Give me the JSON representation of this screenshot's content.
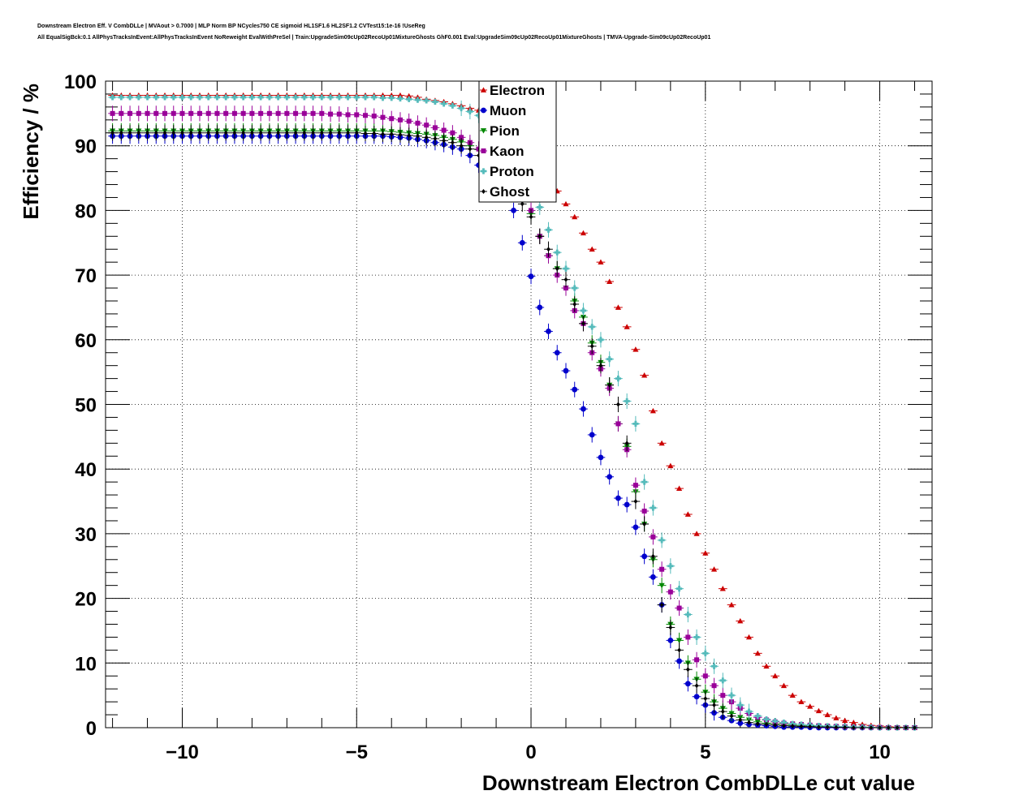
{
  "header": {
    "line1": "Downstream Electron Eff. V CombDLLe | MVAout > 0.7000 | MLP Norm BP NCycles750 CE sigmoid HL1SF1.6 HL2SF1.2 CVTest15:1e-16 !UseReg",
    "line2": "All EqualSigBck:0.1 AllPhysTracksInEvent:AllPhysTracksInEvent NoReweight EvalWithPreSel | Train:UpgradeSim09cUp02RecoUp01MixtureGhosts GhF0.001 Eval:UpgradeSim09cUp02RecoUp01MixtureGhosts | TMVA-Upgrade-Sim09cUp02RecoUp01"
  },
  "chart_data": {
    "type": "scatter",
    "xlabel": "Downstream Electron CombDLLe cut value",
    "ylabel": "Efficiency / %",
    "xlim": [
      -12.2,
      11.5
    ],
    "ylim": [
      0,
      100
    ],
    "xticks": [
      -10,
      -5,
      0,
      5,
      10
    ],
    "xtick_labels": [
      "−10",
      "−5",
      "0",
      "5",
      "10"
    ],
    "yticks": [
      0,
      10,
      20,
      30,
      40,
      50,
      60,
      70,
      80,
      90,
      100
    ],
    "ytick_labels": [
      "0",
      "10",
      "20",
      "30",
      "40",
      "50",
      "60",
      "70",
      "80",
      "90",
      "100"
    ],
    "grid": true,
    "legend_position": "top-center",
    "x": [
      -12,
      -11.75,
      -11.5,
      -11.25,
      -11,
      -10.75,
      -10.5,
      -10.25,
      -10,
      -9.75,
      -9.5,
      -9.25,
      -9,
      -8.75,
      -8.5,
      -8.25,
      -8,
      -7.75,
      -7.5,
      -7.25,
      -7,
      -6.75,
      -6.5,
      -6.25,
      -6,
      -5.75,
      -5.5,
      -5.25,
      -5,
      -4.75,
      -4.5,
      -4.25,
      -4,
      -3.75,
      -3.5,
      -3.25,
      -3,
      -2.75,
      -2.5,
      -2.25,
      -2,
      -1.75,
      -1.5,
      -1.25,
      -1,
      -0.75,
      -0.5,
      -0.25,
      0,
      0.25,
      0.5,
      0.75,
      1,
      1.25,
      1.5,
      1.75,
      2,
      2.25,
      2.5,
      2.75,
      3,
      3.25,
      3.5,
      3.75,
      4,
      4.25,
      4.5,
      4.75,
      5,
      5.25,
      5.5,
      5.75,
      6,
      6.25,
      6.5,
      6.75,
      7,
      7.25,
      7.5,
      7.75,
      8,
      8.25,
      8.5,
      8.75,
      9,
      9.25,
      9.5,
      9.75,
      10,
      10.25,
      10.5,
      10.75,
      11
    ],
    "series": [
      {
        "name": "Electron",
        "color": "#cc0000",
        "marker": "triangle-up",
        "values": [
          97.8,
          97.8,
          97.8,
          97.8,
          97.8,
          97.8,
          97.8,
          97.8,
          97.8,
          97.8,
          97.8,
          97.8,
          97.8,
          97.8,
          97.8,
          97.8,
          97.8,
          97.8,
          97.8,
          97.8,
          97.8,
          97.8,
          97.8,
          97.8,
          97.8,
          97.8,
          97.8,
          97.8,
          97.8,
          97.8,
          97.8,
          97.8,
          97.8,
          97.8,
          97.7,
          97.5,
          97.2,
          97.0,
          96.8,
          96.5,
          96.2,
          95.8,
          95.5,
          95.0,
          94.2,
          93.0,
          92.0,
          90.5,
          88.5,
          87.0,
          85.0,
          83.0,
          81.0,
          79.0,
          76.5,
          74.0,
          72.0,
          69.0,
          65.0,
          62.0,
          58.5,
          54.5,
          49.0,
          44.0,
          40.5,
          37.0,
          33.0,
          30.0,
          27.0,
          24.5,
          21.5,
          19.0,
          16.5,
          14.0,
          11.5,
          9.5,
          8.0,
          6.5,
          5.0,
          4.0,
          3.3,
          2.6,
          2.0,
          1.5,
          1.1,
          0.8,
          0.5,
          0.35,
          0.25,
          0.15,
          0.1,
          0.05,
          0.02
        ]
      },
      {
        "name": "Muon",
        "color": "#0000cc",
        "marker": "circle",
        "values": [
          91.5,
          91.5,
          91.5,
          91.5,
          91.5,
          91.5,
          91.5,
          91.5,
          91.5,
          91.5,
          91.5,
          91.5,
          91.5,
          91.5,
          91.5,
          91.5,
          91.5,
          91.5,
          91.5,
          91.5,
          91.5,
          91.5,
          91.5,
          91.5,
          91.5,
          91.5,
          91.5,
          91.5,
          91.5,
          91.5,
          91.5,
          91.5,
          91.4,
          91.3,
          91.2,
          91.0,
          90.8,
          90.5,
          90.2,
          89.8,
          89.5,
          88.5,
          87.0,
          86.0,
          85.0,
          83.0,
          80.0,
          75.0,
          69.8,
          65.0,
          61.3,
          58.0,
          55.2,
          52.3,
          49.3,
          45.3,
          41.8,
          38.8,
          35.5,
          34.5,
          31.0,
          26.5,
          23.3,
          19.0,
          13.5,
          10.3,
          6.8,
          4.8,
          3.5,
          2.3,
          1.6,
          1.1,
          0.7,
          0.5,
          0.4,
          0.3,
          0.2,
          0.1,
          0.1,
          0.1,
          0.05,
          0,
          0,
          0,
          0,
          0,
          0,
          0,
          0,
          0,
          0,
          0,
          0
        ]
      },
      {
        "name": "Pion",
        "color": "#008800",
        "marker": "triangle-down",
        "values": [
          92.3,
          92.3,
          92.3,
          92.3,
          92.3,
          92.3,
          92.3,
          92.3,
          92.3,
          92.3,
          92.3,
          92.3,
          92.3,
          92.3,
          92.3,
          92.3,
          92.3,
          92.3,
          92.3,
          92.3,
          92.3,
          92.3,
          92.3,
          92.3,
          92.3,
          92.3,
          92.3,
          92.3,
          92.3,
          92.3,
          92.3,
          92.3,
          92.2,
          92.1,
          92.0,
          91.9,
          91.8,
          91.6,
          91.3,
          91.0,
          90.6,
          90.0,
          89.4,
          88.5,
          87.5,
          86.0,
          84.0,
          82.0,
          79.5,
          76.0,
          73.0,
          71.0,
          68.0,
          66.0,
          63.5,
          59.5,
          56.5,
          53.0,
          47.0,
          43.5,
          36.5,
          31.5,
          26.0,
          22.0,
          16.0,
          13.5,
          10.0,
          7.5,
          5.5,
          4.0,
          3.0,
          2.2,
          1.6,
          1.2,
          0.9,
          0.7,
          0.6,
          0.5,
          0.4,
          0.3,
          0.25,
          0.2,
          0.15,
          0.1,
          0.1,
          0.05,
          0.05,
          0.05,
          0,
          0,
          0,
          0,
          0
        ]
      },
      {
        "name": "Kaon",
        "color": "#990099",
        "marker": "square",
        "values": [
          95.0,
          95.0,
          95.0,
          95.0,
          95.0,
          95.0,
          95.0,
          95.0,
          95.0,
          95.0,
          95.0,
          95.0,
          95.0,
          95.0,
          95.0,
          95.0,
          95.0,
          95.0,
          95.0,
          95.0,
          95.0,
          95.0,
          95.0,
          95.0,
          95.0,
          94.9,
          94.9,
          94.8,
          94.8,
          94.7,
          94.6,
          94.4,
          94.2,
          94.0,
          93.8,
          93.5,
          93.2,
          92.8,
          92.4,
          92.0,
          91.3,
          90.5,
          89.5,
          88.5,
          87.0,
          85.5,
          84.0,
          82.5,
          80.0,
          76.0,
          73.0,
          70.0,
          68.0,
          64.5,
          62.5,
          58.0,
          55.5,
          52.5,
          47.0,
          43.0,
          37.5,
          33.5,
          29.5,
          24.5,
          21.0,
          18.5,
          14.0,
          10.5,
          8.0,
          6.5,
          5.0,
          4.0,
          3.0,
          2.2,
          1.6,
          1.2,
          0.9,
          0.7,
          0.6,
          0.5,
          0.4,
          0.3,
          0.25,
          0.2,
          0.15,
          0.1,
          0.1,
          0.05,
          0.05,
          0,
          0,
          0,
          0
        ]
      },
      {
        "name": "Proton",
        "color": "#55bbbb",
        "marker": "cross",
        "values": [
          97.5,
          97.5,
          97.5,
          97.5,
          97.5,
          97.5,
          97.5,
          97.5,
          97.5,
          97.5,
          97.5,
          97.5,
          97.5,
          97.5,
          97.5,
          97.5,
          97.5,
          97.5,
          97.5,
          97.5,
          97.5,
          97.5,
          97.5,
          97.5,
          97.5,
          97.5,
          97.5,
          97.5,
          97.5,
          97.5,
          97.5,
          97.4,
          97.4,
          97.3,
          97.2,
          97.1,
          97.0,
          96.8,
          96.5,
          96.2,
          95.8,
          95.3,
          94.7,
          93.8,
          92.5,
          91.0,
          88.5,
          86.5,
          83.0,
          80.5,
          77.0,
          73.5,
          71.0,
          68.0,
          64.5,
          62.0,
          60.0,
          57.0,
          54.0,
          50.5,
          47.0,
          38.0,
          34.0,
          29.0,
          25.0,
          21.5,
          17.5,
          14.0,
          11.5,
          9.5,
          7.3,
          5.0,
          3.5,
          2.5,
          1.8,
          1.3,
          1.0,
          0.8,
          0.6,
          0.5,
          0.4,
          0.3,
          0.25,
          0.2,
          0.15,
          0.1,
          0.1,
          0.05,
          0,
          0,
          0,
          0,
          0
        ]
      },
      {
        "name": "Ghost",
        "color": "#000000",
        "marker": "diamond",
        "values": [
          92.0,
          92.0,
          92.0,
          92.0,
          92.0,
          92.0,
          92.0,
          92.0,
          92.0,
          92.0,
          92.0,
          92.0,
          92.0,
          92.0,
          92.0,
          92.0,
          92.0,
          92.0,
          92.0,
          92.0,
          92.0,
          92.0,
          92.0,
          92.0,
          92.0,
          92.0,
          92.0,
          92.0,
          92.0,
          91.9,
          91.9,
          91.8,
          91.8,
          91.7,
          91.6,
          91.5,
          91.3,
          91.1,
          90.8,
          90.5,
          90.0,
          89.5,
          88.5,
          87.5,
          86.0,
          84.5,
          83.0,
          81.0,
          79.0,
          76.0,
          74.0,
          71.0,
          69.3,
          65.5,
          62.5,
          59.0,
          56.0,
          53.0,
          50.0,
          44.0,
          35.0,
          31.5,
          26.5,
          19.0,
          15.5,
          12.0,
          9.0,
          6.5,
          4.5,
          3.5,
          2.5,
          1.8,
          1.2,
          0.8,
          0.6,
          0.5,
          0.4,
          0.3,
          0.25,
          0.2,
          0.15,
          0.1,
          0.1,
          0.05,
          0.05,
          0,
          0,
          0,
          0,
          0,
          0,
          0,
          0
        ]
      }
    ]
  }
}
